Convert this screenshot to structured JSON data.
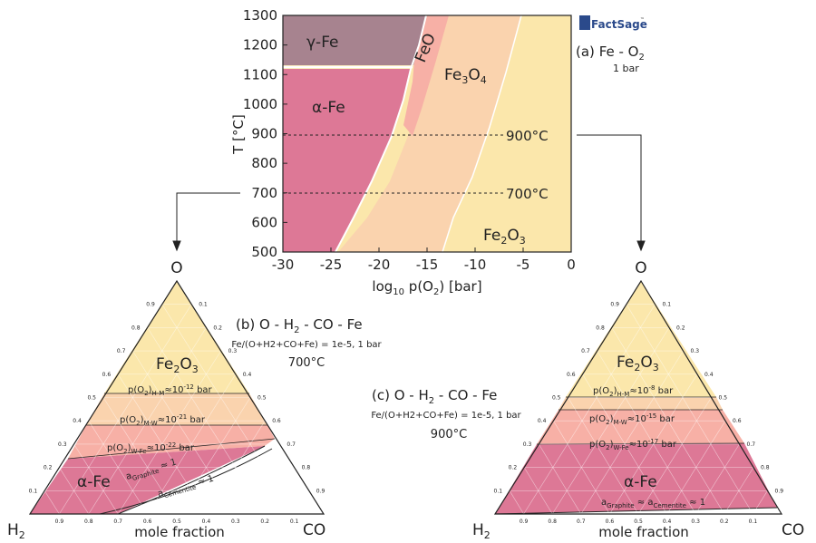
{
  "logo": {
    "text": "FactSage",
    "tm": "™"
  },
  "panel_a": {
    "label": "(a)",
    "system": "Fe - O",
    "system_sub": "2",
    "pressure": "1 bar",
    "phases": {
      "gamma_fe": "γ-Fe",
      "alpha_fe": "α-Fe",
      "feo": "FeO",
      "fe3o4": {
        "main": "Fe",
        "sub1": "3",
        "mid": "O",
        "sub2": "4"
      },
      "fe2o3": {
        "main": "Fe",
        "sub1": "2",
        "mid": "O",
        "sub2": "3"
      }
    },
    "iso_900": "900°C",
    "iso_700": "700°C",
    "xlabel": {
      "pre": "log",
      "sub": "10",
      "post": " p(O",
      "sub2": "2",
      "post2": ") [bar]"
    },
    "ylabel": "T [°C]",
    "xticks": [
      "-30",
      "-25",
      "-20",
      "-15",
      "-10",
      "-5",
      "0"
    ],
    "yticks": [
      "1300",
      "1200",
      "1100",
      "1000",
      "900",
      "800",
      "700",
      "600",
      "500"
    ]
  },
  "panel_b": {
    "label": "(b)",
    "system": {
      "a": "O - H",
      "sub": "2",
      "b": " - CO - Fe"
    },
    "condition": "Fe/(O+H2+CO+Fe) = 1e-5, 1 bar",
    "temperature": "700°C",
    "fe2o3": {
      "main": "Fe",
      "sub1": "2",
      "mid": "O",
      "sub2": "3"
    },
    "alpha_fe": "α-Fe",
    "po2_hm": {
      "pre": "p(O",
      "s1": "2",
      "mid": ")",
      "s2": "H-M",
      "approx": "≈10",
      "exp": "-12",
      "unit": " bar"
    },
    "po2_mw": {
      "pre": "p(O",
      "s1": "2",
      "mid": ")",
      "s2": "M-W",
      "approx": "≈10",
      "exp": "-21",
      "unit": " bar"
    },
    "po2_wfe": {
      "pre": "p(O",
      "s1": "2",
      "mid": ")",
      "s2": "W-Fe",
      "approx": "≈10",
      "exp": "-22",
      "unit": " bar"
    },
    "a_graphite": {
      "pre": "a",
      "sub": "Graphite",
      "post": " ≈ 1"
    },
    "a_cementite": {
      "pre": "a",
      "sub": "Cementite",
      "post": " ≈ 1"
    },
    "vertex_top": "O",
    "vertex_left": "H",
    "vertex_left_sub": "2",
    "vertex_right": "CO",
    "axis_label": "mole fraction"
  },
  "panel_c": {
    "label": "(c)",
    "system": {
      "a": "O - H",
      "sub": "2",
      "b": " - CO - Fe"
    },
    "condition": "Fe/(O+H2+CO+Fe) = 1e-5, 1 bar",
    "temperature": "900°C",
    "fe2o3": {
      "main": "Fe",
      "sub1": "2",
      "mid": "O",
      "sub2": "3"
    },
    "alpha_fe": "α-Fe",
    "po2_hm": {
      "pre": "p(O",
      "s1": "2",
      "mid": ")",
      "s2": "H-M",
      "approx": "≈10",
      "exp": "-8",
      "unit": " bar"
    },
    "po2_mw": {
      "pre": "p(O",
      "s1": "2",
      "mid": ")",
      "s2": "M-W",
      "approx": "≈10",
      "exp": "-15",
      "unit": " bar"
    },
    "po2_wfe": {
      "pre": "p(O",
      "s1": "2",
      "mid": ")",
      "s2": "W-Fe",
      "approx": "≈10",
      "exp": "-17",
      "unit": " bar"
    },
    "a_both": {
      "pre": "a",
      "sub": "Graphite",
      "mid": " ≈ a",
      "sub2": "Cementite",
      "post": " ≈ 1"
    },
    "vertex_top": "O",
    "vertex_left": "H",
    "vertex_left_sub": "2",
    "vertex_right": "CO",
    "axis_label": "mole fraction"
  },
  "ternary_ticks": [
    "0.1",
    "0.2",
    "0.3",
    "0.4",
    "0.5",
    "0.6",
    "0.7",
    "0.8",
    "0.9"
  ],
  "colors": {
    "gamma_fe": "#a7838f",
    "alpha_fe": "#dd7896",
    "feo": "#f7b0a6",
    "fe3o4": "#fad3ae",
    "fe2o3": "#fbe7ab",
    "cementite": "#ffffff"
  }
}
